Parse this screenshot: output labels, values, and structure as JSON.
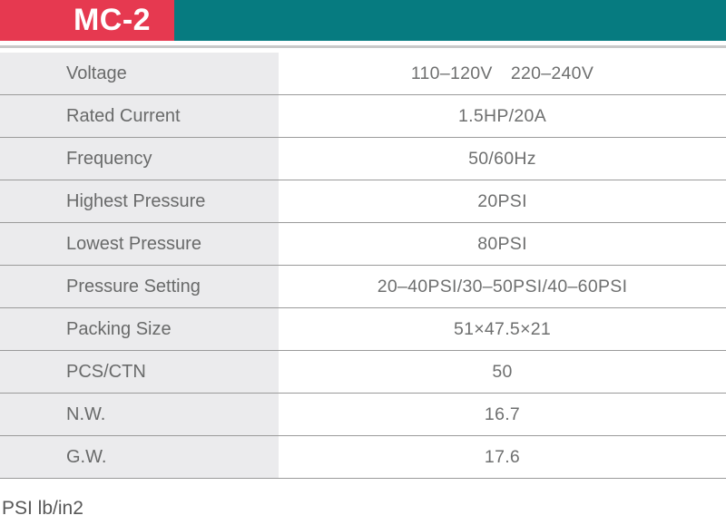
{
  "header": {
    "model_label": "MC-2"
  },
  "table": {
    "rows": [
      {
        "label": "Voltage",
        "value": "110–120V  220–240V"
      },
      {
        "label": "Rated Current",
        "value": "1.5HP/20A"
      },
      {
        "label": "Frequency",
        "value": "50/60Hz"
      },
      {
        "label": "Highest Pressure",
        "value": "20PSI"
      },
      {
        "label": "Lowest Pressure",
        "value": "80PSI"
      },
      {
        "label": "Pressure Setting",
        "value": "20–40PSI/30–50PSI/40–60PSI"
      },
      {
        "label": "Packing Size",
        "value": "51×47.5×21"
      },
      {
        "label": "PCS/CTN",
        "value": "50"
      },
      {
        "label": "N.W.",
        "value": "16.7"
      },
      {
        "label": "G.W.",
        "value": "17.6"
      }
    ]
  },
  "footer": {
    "note": "PSI lb/in2"
  },
  "colors": {
    "teal_header": "#067b80",
    "red_badge": "#e63950",
    "label_cell_bg": "#ebebed",
    "row_separator": "#9a9a9a",
    "text_gray": "#6e6f6f"
  }
}
